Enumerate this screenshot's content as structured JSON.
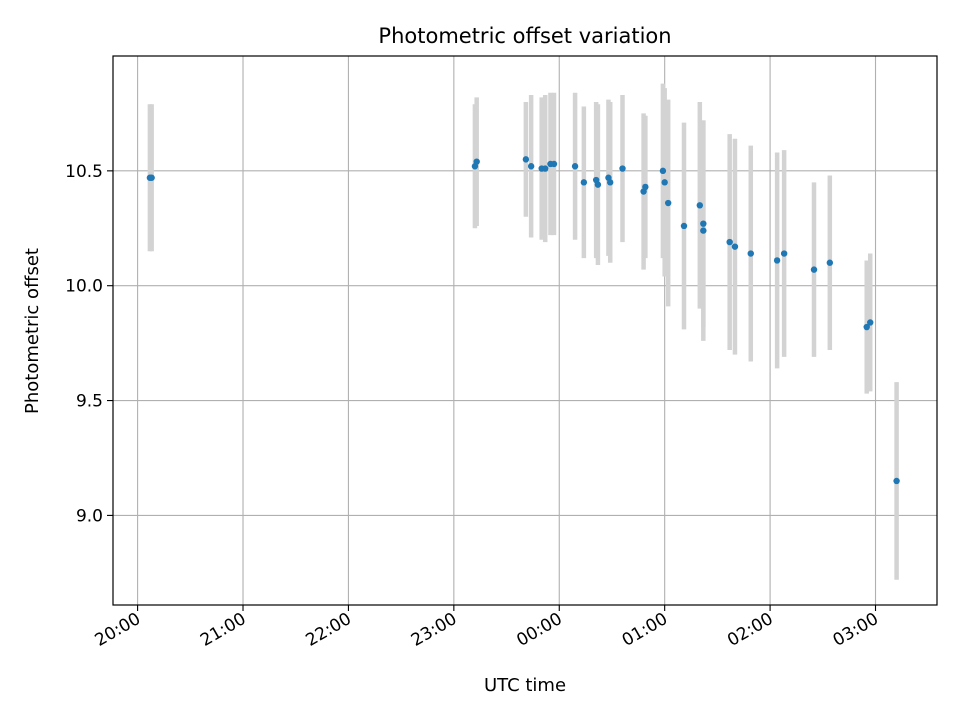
{
  "chart_data": {
    "type": "scatter",
    "title": "Photometric offset variation",
    "xlabel": "UTC time",
    "ylabel": "Photometric offset",
    "grid": true,
    "xlim": [
      "19:46",
      "03:35"
    ],
    "ylim": [
      8.61,
      11.0
    ],
    "x_ticks": [
      "20:00",
      "21:00",
      "22:00",
      "23:00",
      "00:00",
      "01:00",
      "02:00",
      "03:00"
    ],
    "y_ticks": [
      "9.0",
      "9.5",
      "10.0",
      "10.5"
    ],
    "y_tick_values": [
      9.0,
      9.5,
      10.0,
      10.5
    ],
    "colors": {
      "point": "#1f77b4",
      "errorbar": "#d3d3d3",
      "grid": "#b0b0b0"
    },
    "points": [
      {
        "x": "20:07",
        "y": 10.47,
        "err": 0.32
      },
      {
        "x": "20:08",
        "y": 10.47,
        "err": 0.32
      },
      {
        "x": "23:12",
        "y": 10.52,
        "err": 0.27
      },
      {
        "x": "23:13",
        "y": 10.54,
        "err": 0.28
      },
      {
        "x": "23:41",
        "y": 10.55,
        "err": 0.25
      },
      {
        "x": "23:44",
        "y": 10.52,
        "err": 0.31
      },
      {
        "x": "23:50",
        "y": 10.51,
        "err": 0.31
      },
      {
        "x": "23:52",
        "y": 10.51,
        "err": 0.32
      },
      {
        "x": "23:55",
        "y": 10.53,
        "err": 0.31
      },
      {
        "x": "23:57",
        "y": 10.53,
        "err": 0.31
      },
      {
        "x": "00:09",
        "y": 10.52,
        "err": 0.32
      },
      {
        "x": "00:14",
        "y": 10.45,
        "err": 0.33
      },
      {
        "x": "00:21",
        "y": 10.46,
        "err": 0.34
      },
      {
        "x": "00:22",
        "y": 10.44,
        "err": 0.35
      },
      {
        "x": "00:28",
        "y": 10.47,
        "err": 0.34
      },
      {
        "x": "00:29",
        "y": 10.45,
        "err": 0.35
      },
      {
        "x": "00:36",
        "y": 10.51,
        "err": 0.32
      },
      {
        "x": "00:48",
        "y": 10.41,
        "err": 0.34
      },
      {
        "x": "00:49",
        "y": 10.43,
        "err": 0.31
      },
      {
        "x": "00:59",
        "y": 10.5,
        "err": 0.38
      },
      {
        "x": "01:00",
        "y": 10.45,
        "err": 0.41
      },
      {
        "x": "01:02",
        "y": 10.36,
        "err": 0.45
      },
      {
        "x": "01:11",
        "y": 10.26,
        "err": 0.45
      },
      {
        "x": "01:20",
        "y": 10.35,
        "err": 0.45
      },
      {
        "x": "01:22",
        "y": 10.27,
        "err": 0.45
      },
      {
        "x": "01:22",
        "y": 10.24,
        "err": 0.48
      },
      {
        "x": "01:37",
        "y": 10.19,
        "err": 0.47
      },
      {
        "x": "01:40",
        "y": 10.17,
        "err": 0.47
      },
      {
        "x": "01:49",
        "y": 10.14,
        "err": 0.47
      },
      {
        "x": "02:04",
        "y": 10.11,
        "err": 0.47
      },
      {
        "x": "02:08",
        "y": 10.14,
        "err": 0.45
      },
      {
        "x": "02:25",
        "y": 10.07,
        "err": 0.38
      },
      {
        "x": "02:34",
        "y": 10.1,
        "err": 0.38
      },
      {
        "x": "02:55",
        "y": 9.82,
        "err": 0.29
      },
      {
        "x": "02:57",
        "y": 9.84,
        "err": 0.3
      },
      {
        "x": "03:12",
        "y": 9.15,
        "err": 0.43
      }
    ]
  }
}
